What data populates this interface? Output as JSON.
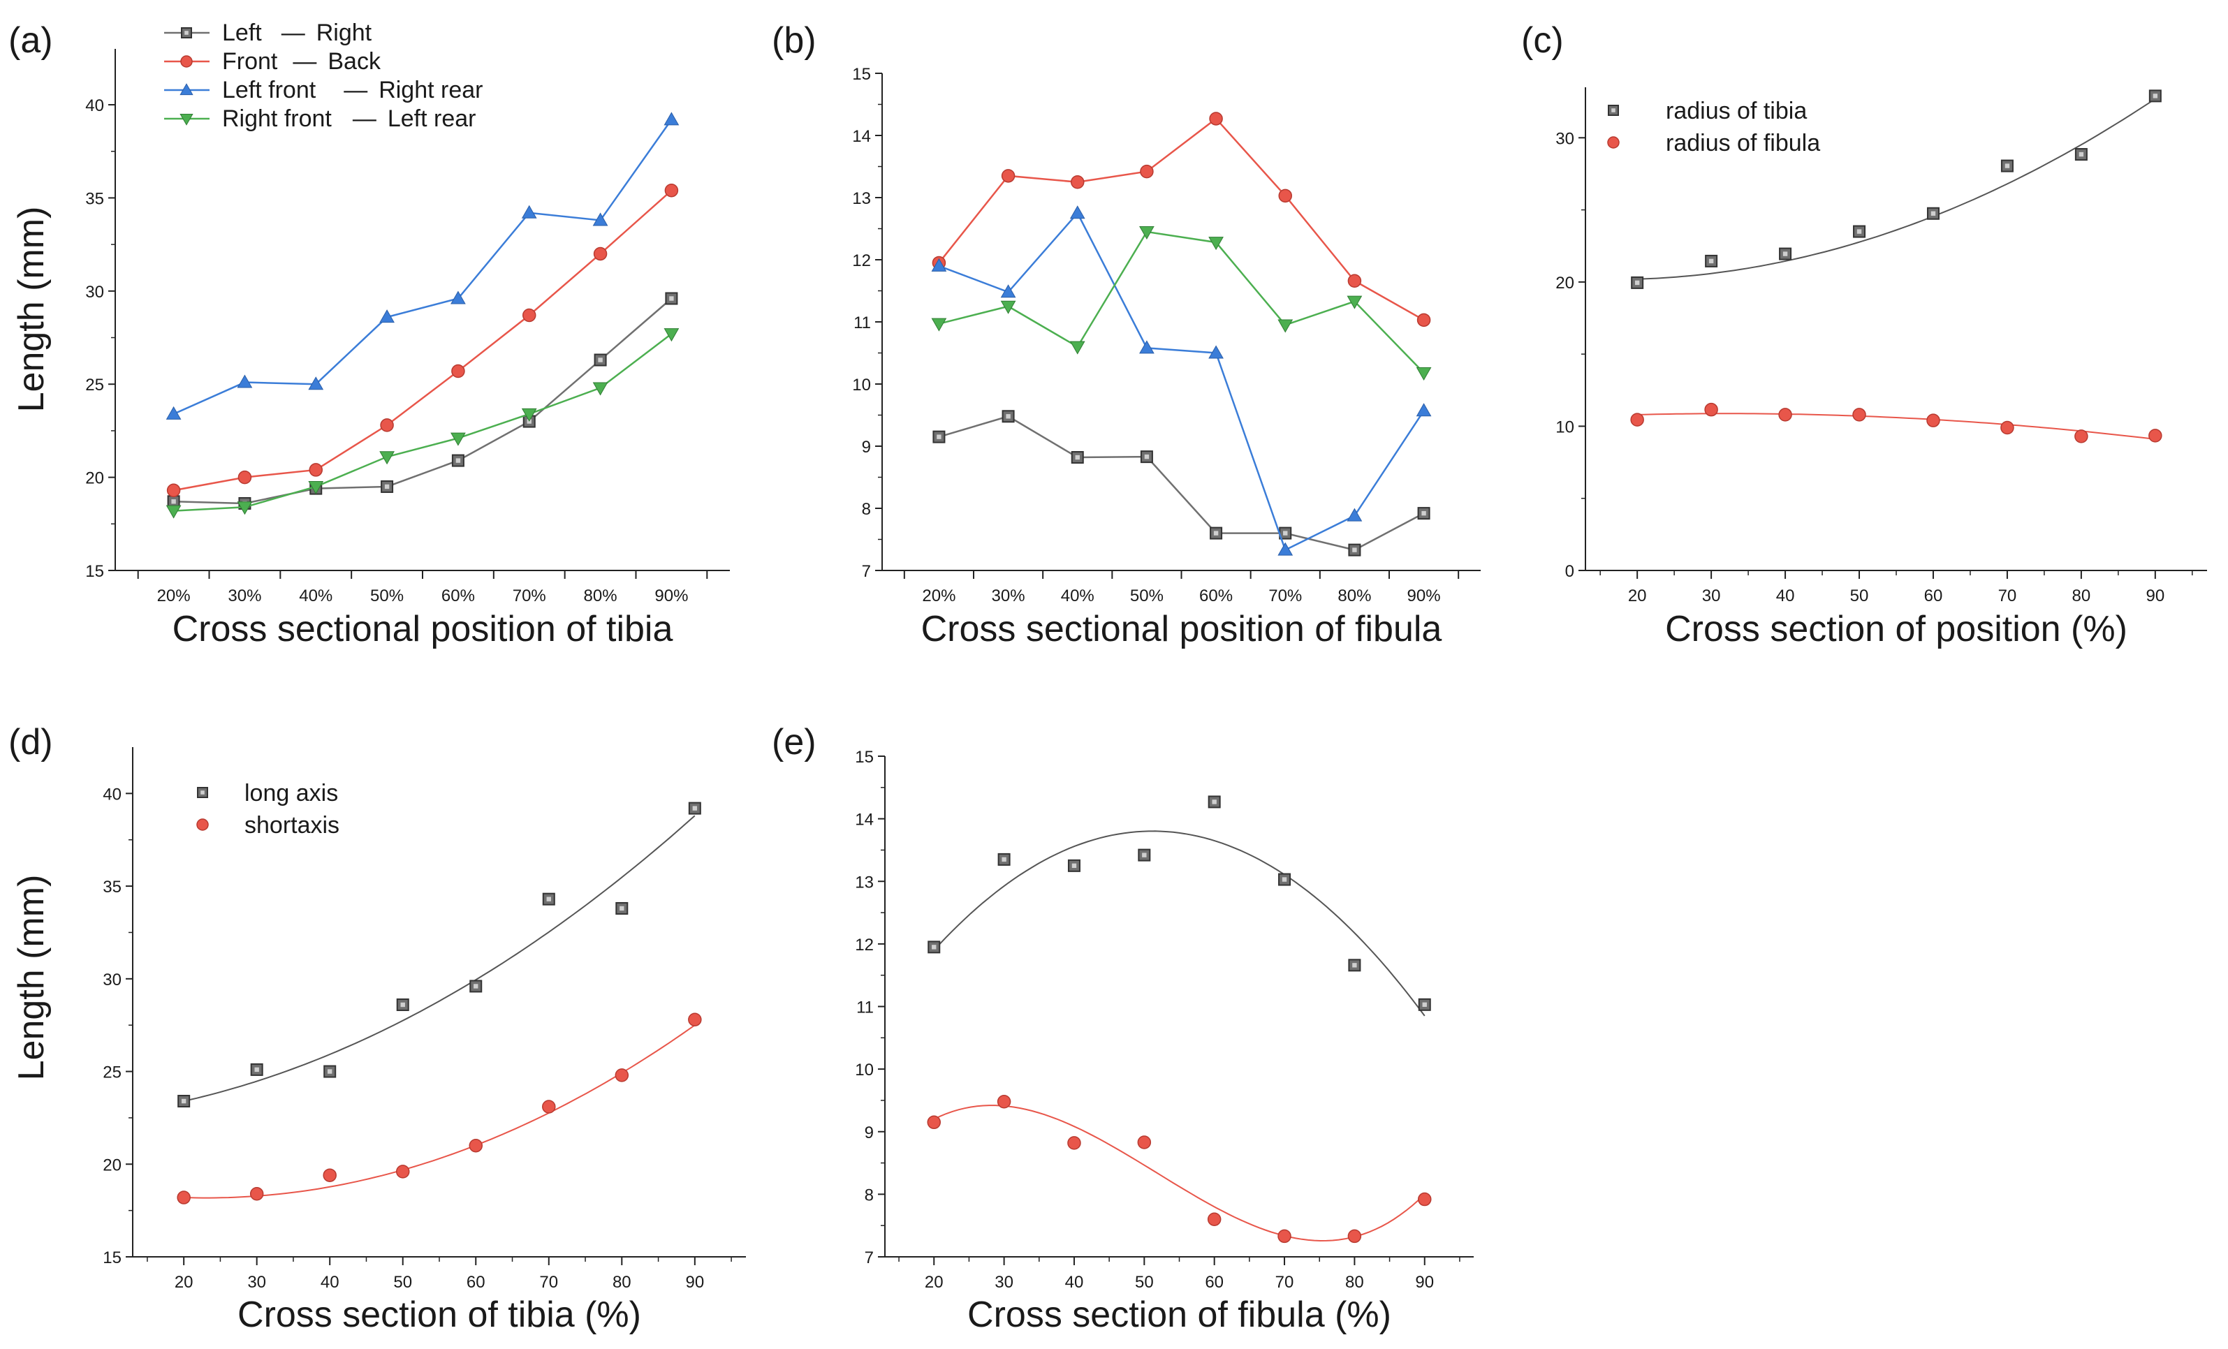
{
  "figure": {
    "panel_labels": [
      "(a)",
      "(b)",
      "(c)",
      "(d)",
      "(e)"
    ]
  },
  "chart_data": [
    {
      "panel": "(a)",
      "type": "line",
      "xlabel": "Cross sectional position of tibia",
      "ylabel": "Length (mm)",
      "categories": [
        "20%",
        "30%",
        "40%",
        "50%",
        "60%",
        "70%",
        "80%",
        "90%"
      ],
      "ylim": [
        15,
        43
      ],
      "yticks": [
        15,
        20,
        25,
        30,
        35,
        40
      ],
      "legend_position": "top-left",
      "legend": [
        {
          "a": "Left",
          "b": "Right"
        },
        {
          "a": "Front",
          "b": "Back"
        },
        {
          "a": "Left front",
          "b": "Right rear"
        },
        {
          "a": "Right front",
          "b": "Left rear"
        }
      ],
      "series": [
        {
          "name": "Left — Right",
          "marker": "square",
          "color": "#707070",
          "values": [
            18.7,
            18.6,
            19.4,
            19.5,
            20.9,
            23.0,
            26.3,
            29.6
          ]
        },
        {
          "name": "Front — Back",
          "marker": "circle",
          "color": "#e8564a",
          "values": [
            19.3,
            20.0,
            20.4,
            22.8,
            25.7,
            28.7,
            32.0,
            35.4
          ]
        },
        {
          "name": "Left front — Right rear",
          "marker": "triangle-up",
          "color": "#3b7dd8",
          "values": [
            23.4,
            25.1,
            25.0,
            28.6,
            29.6,
            34.2,
            33.8,
            39.2
          ]
        },
        {
          "name": "Right front — Left rear",
          "marker": "triangle-down",
          "color": "#4caf50",
          "values": [
            18.2,
            18.4,
            19.5,
            21.1,
            22.1,
            23.4,
            24.8,
            27.7
          ]
        }
      ]
    },
    {
      "panel": "(b)",
      "type": "line",
      "xlabel": "Cross sectional position of fibula",
      "ylabel": "",
      "categories": [
        "20%",
        "30%",
        "40%",
        "50%",
        "60%",
        "70%",
        "80%",
        "90%"
      ],
      "ylim": [
        7,
        15
      ],
      "yticks": [
        7,
        8,
        9,
        10,
        11,
        12,
        13,
        14,
        15
      ],
      "series": [
        {
          "name": "Left — Right",
          "marker": "square",
          "color": "#707070",
          "values": [
            9.15,
            9.48,
            8.82,
            8.83,
            7.6,
            7.6,
            7.33,
            7.92
          ]
        },
        {
          "name": "Front — Back",
          "marker": "circle",
          "color": "#e8564a",
          "values": [
            11.95,
            13.35,
            13.25,
            13.42,
            14.27,
            13.03,
            11.66,
            11.03
          ]
        },
        {
          "name": "Left front — Right rear",
          "marker": "triangle-up",
          "color": "#3b7dd8",
          "values": [
            11.9,
            11.48,
            12.75,
            10.58,
            10.5,
            7.33,
            7.88,
            9.57
          ]
        },
        {
          "name": "Right front — Left rear",
          "marker": "triangle-down",
          "color": "#4caf50",
          "values": [
            10.97,
            11.25,
            10.6,
            12.45,
            12.28,
            10.95,
            11.33,
            10.18
          ]
        }
      ]
    },
    {
      "panel": "(c)",
      "type": "scatter",
      "xlabel": "Cross section of position (%)",
      "ylabel": "",
      "xlim": [
        13,
        97
      ],
      "xticks": [
        20,
        30,
        40,
        50,
        60,
        70,
        80,
        90
      ],
      "ylim": [
        0,
        33.5
      ],
      "yticks": [
        0,
        10,
        20,
        30
      ],
      "legend_position": "top-left",
      "series": [
        {
          "name": "radius of tibia",
          "marker": "square",
          "color": "#707070",
          "x": [
            20,
            30,
            40,
            50,
            60,
            70,
            80,
            90
          ],
          "values": [
            19.95,
            21.45,
            21.95,
            23.5,
            24.75,
            28.05,
            28.85,
            32.9
          ],
          "fit": {
            "kind": "quadratic",
            "points": [
              [
                20,
                20.2
              ],
              [
                55,
                23.6
              ],
              [
                90,
                32.7
              ]
            ]
          }
        },
        {
          "name": "radius of fibula",
          "marker": "circle",
          "color": "#e8564a",
          "x": [
            20,
            30,
            40,
            50,
            60,
            70,
            80,
            90
          ],
          "values": [
            10.45,
            11.15,
            10.8,
            10.8,
            10.4,
            9.9,
            9.3,
            9.35
          ],
          "fit": {
            "kind": "quadratic",
            "points": [
              [
                20,
                10.8
              ],
              [
                55,
                10.6
              ],
              [
                90,
                9.1
              ]
            ]
          }
        }
      ]
    },
    {
      "panel": "(d)",
      "type": "scatter",
      "xlabel": "Cross section of tibia (%)",
      "ylabel": "Length (mm)",
      "xlim": [
        13,
        97
      ],
      "xticks": [
        20,
        30,
        40,
        50,
        60,
        70,
        80,
        90
      ],
      "ylim": [
        15,
        42.5
      ],
      "yticks": [
        15,
        20,
        25,
        30,
        35,
        40
      ],
      "legend_position": "top-left",
      "series": [
        {
          "name": "long axis",
          "marker": "square",
          "color": "#707070",
          "x": [
            20,
            30,
            40,
            50,
            60,
            70,
            80,
            90
          ],
          "values": [
            23.4,
            25.1,
            25.0,
            28.6,
            29.6,
            34.3,
            33.8,
            39.2
          ],
          "fit": {
            "kind": "quadratic",
            "points": [
              [
                20,
                23.4
              ],
              [
                55,
                28.8
              ],
              [
                90,
                38.8
              ]
            ]
          }
        },
        {
          "name": "shortaxis",
          "marker": "circle",
          "color": "#e8564a",
          "x": [
            20,
            30,
            40,
            50,
            60,
            70,
            80,
            90
          ],
          "values": [
            18.2,
            18.4,
            19.4,
            19.6,
            21.0,
            23.1,
            24.8,
            27.8
          ],
          "fit": {
            "kind": "quadratic",
            "points": [
              [
                20,
                18.2
              ],
              [
                55,
                20.3
              ],
              [
                90,
                27.5
              ]
            ]
          }
        }
      ]
    },
    {
      "panel": "(e)",
      "type": "scatter",
      "xlabel": "Cross section of fibula (%)",
      "ylabel": "",
      "xlim": [
        13,
        97
      ],
      "xticks": [
        20,
        30,
        40,
        50,
        60,
        70,
        80,
        90
      ],
      "ylim": [
        7,
        15
      ],
      "yticks": [
        7,
        8,
        9,
        10,
        11,
        12,
        13,
        14,
        15
      ],
      "series": [
        {
          "name": "long axis",
          "marker": "square",
          "color": "#707070",
          "x": [
            20,
            30,
            40,
            50,
            60,
            70,
            80,
            90
          ],
          "values": [
            11.95,
            13.35,
            13.25,
            13.42,
            14.27,
            13.03,
            11.66,
            11.03
          ],
          "fit": {
            "kind": "quadratic",
            "points": [
              [
                20,
                11.9
              ],
              [
                50,
                13.8
              ],
              [
                90,
                10.85
              ]
            ]
          }
        },
        {
          "name": "short axis",
          "marker": "circle",
          "color": "#e8564a",
          "x": [
            20,
            30,
            40,
            50,
            60,
            70,
            80,
            90
          ],
          "values": [
            9.15,
            9.48,
            8.82,
            8.83,
            7.6,
            7.33,
            7.33,
            7.92
          ],
          "fit": {
            "kind": "cubic",
            "points": [
              [
                20,
                9.2
              ],
              [
                35,
                9.3
              ],
              [
                60,
                7.8
              ],
              [
                90,
                8.0
              ]
            ]
          }
        }
      ]
    }
  ]
}
